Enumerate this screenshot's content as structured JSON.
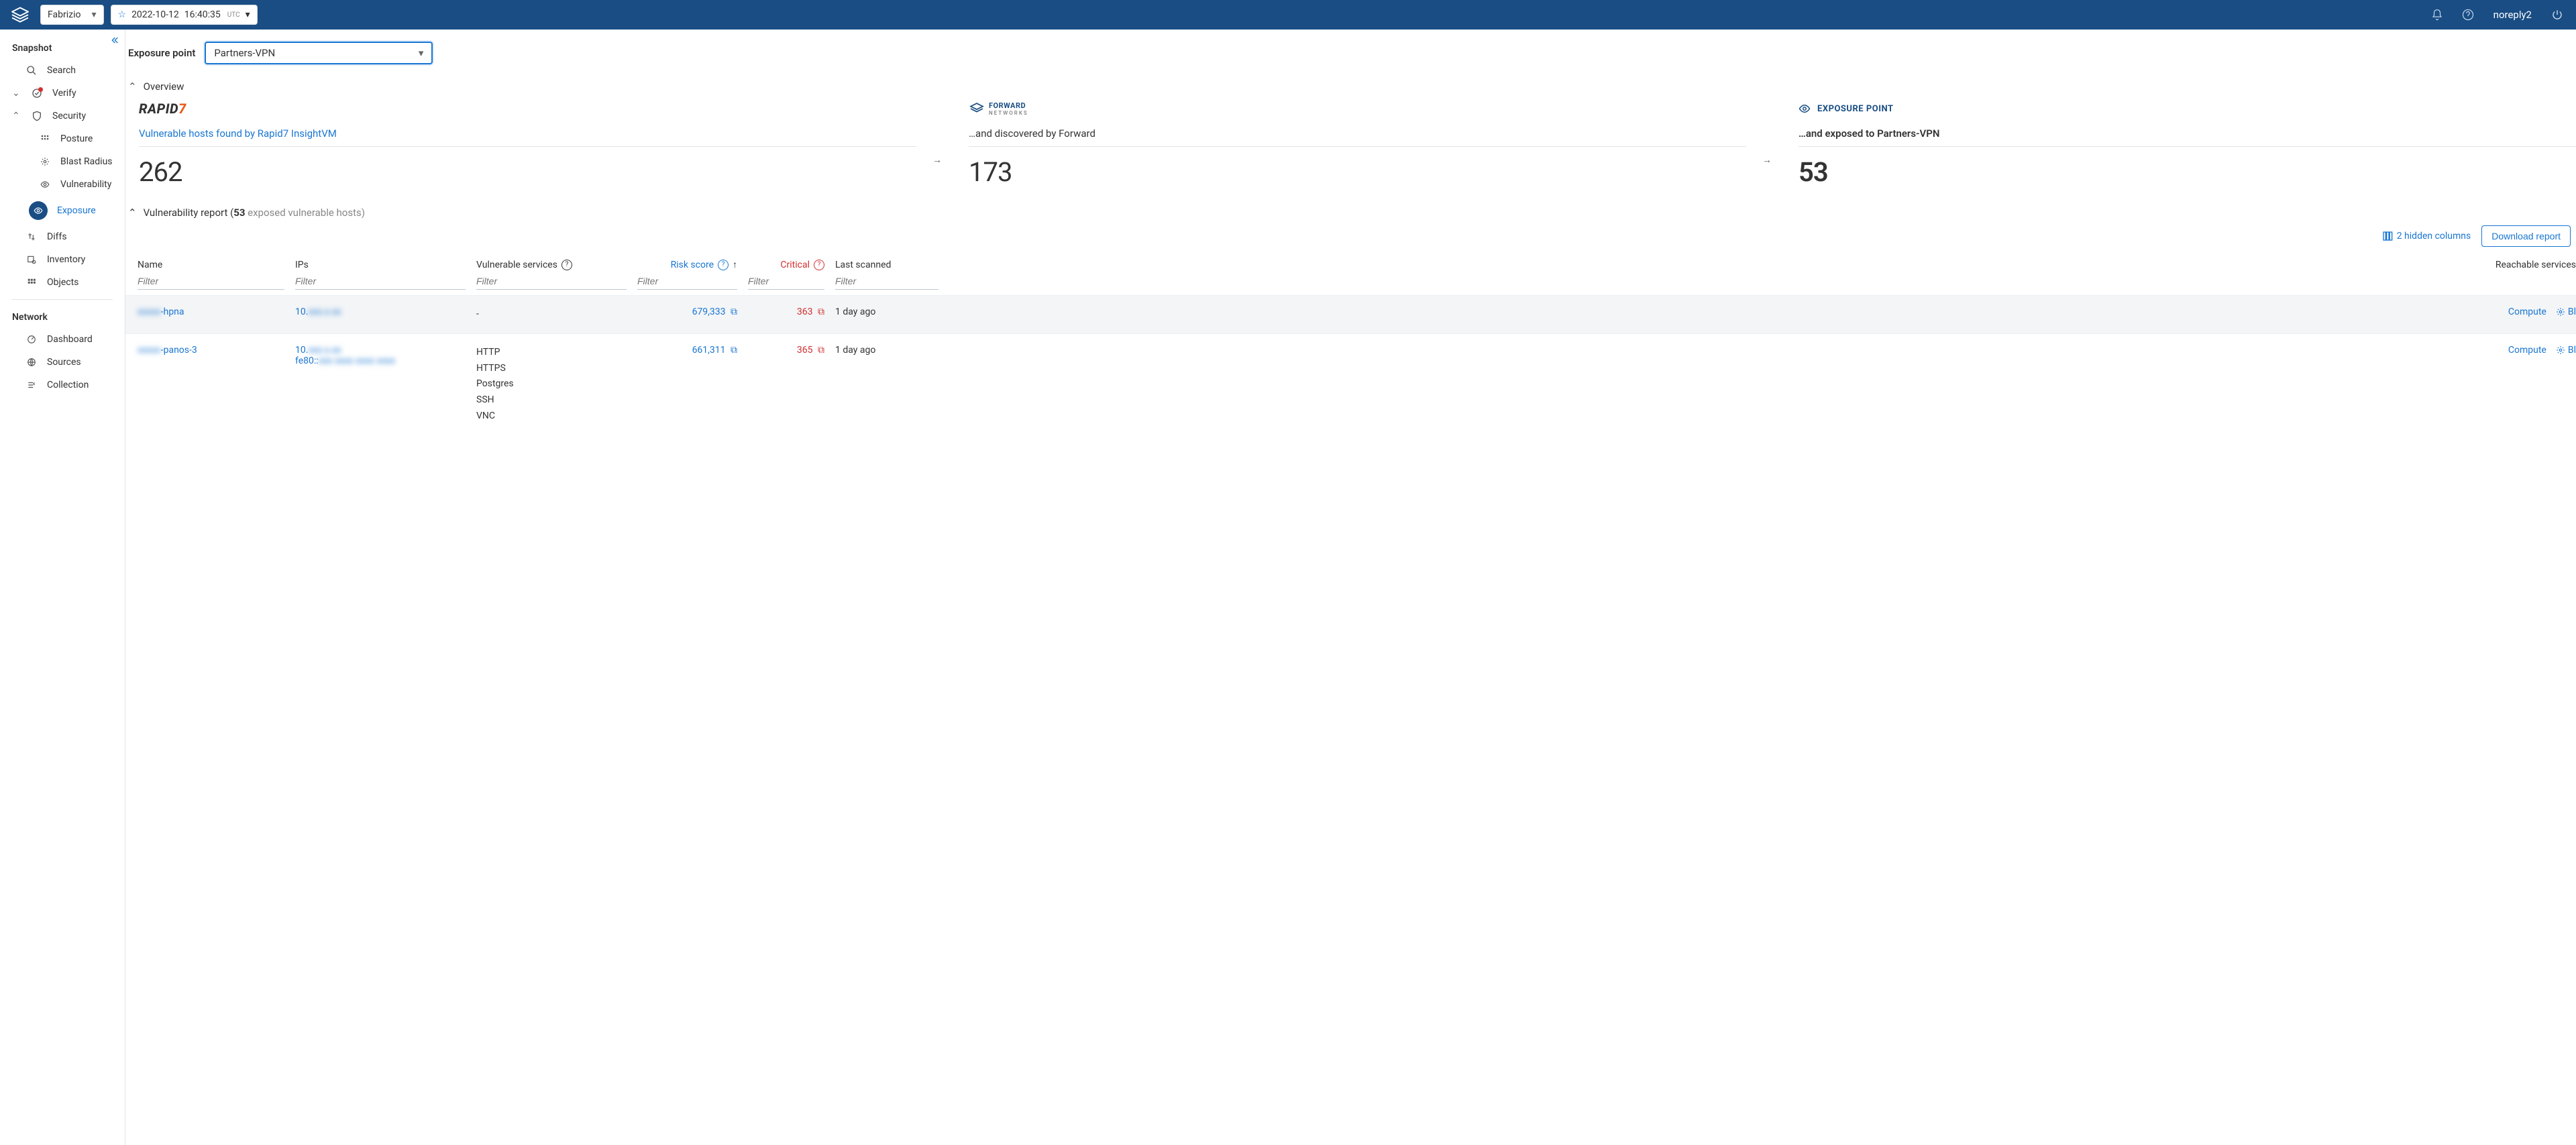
{
  "topbar": {
    "workspace": "Fabrizio",
    "timestamp_date": "2022-10-12",
    "timestamp_time": "16:40:35",
    "timestamp_tz": "UTC",
    "user": "noreply2"
  },
  "sidebar": {
    "group_snapshot": "Snapshot",
    "search": "Search",
    "verify": "Verify",
    "security": "Security",
    "posture": "Posture",
    "blast_radius": "Blast Radius",
    "vulnerability": "Vulnerability",
    "exposure": "Exposure",
    "diffs": "Diffs",
    "inventory": "Inventory",
    "objects": "Objects",
    "group_network": "Network",
    "dashboard": "Dashboard",
    "sources": "Sources",
    "collection": "Collection"
  },
  "exposure": {
    "label": "Exposure point",
    "selected": "Partners-VPN"
  },
  "overview": {
    "section_title": "Overview",
    "card1_title": "Vulnerable hosts found by Rapid7 InsightVM",
    "card1_value": "262",
    "card2_title": "…and discovered by Forward",
    "card2_value": "173",
    "card3_badge": "EXPOSURE POINT",
    "card3_title": "…and exposed to Partners-VPN",
    "card3_value": "53"
  },
  "report": {
    "title_prefix": "Vulnerability report (",
    "count": "53",
    "title_suffix": " exposed vulnerable hosts)",
    "hidden_columns": "2 hidden columns",
    "download": "Download report"
  },
  "columns": {
    "name": "Name",
    "ips": "IPs",
    "vuln_services": "Vulnerable services",
    "risk_score": "Risk score",
    "critical": "Critical",
    "last_scanned": "Last scanned",
    "reachable": "Reachable services",
    "filter_placeholder": "Filter"
  },
  "rows": [
    {
      "name_blur": "xxxxx",
      "name_suffix": "-hpna",
      "ip1_prefix": "10.",
      "ip1_blur": "xxx.x.xx",
      "ip2_prefix": "",
      "ip2_blur": "",
      "services": [
        "-"
      ],
      "risk": "679,333",
      "critical": "363",
      "scanned": "1 day ago",
      "reach_label": "Compute",
      "blast_label": "Bl"
    },
    {
      "name_blur": "xxxxx",
      "name_suffix": "-panos-3",
      "ip1_prefix": "10.",
      "ip1_blur": "xxx.x.xx",
      "ip2_prefix": "fe80::",
      "ip2_blur": "xxx xxxx xxxx xxxx",
      "services": [
        "HTTP",
        "HTTPS",
        "Postgres",
        "SSH",
        "VNC"
      ],
      "risk": "661,311",
      "critical": "365",
      "scanned": "1 day ago",
      "reach_label": "Compute",
      "blast_label": "Bl"
    }
  ]
}
